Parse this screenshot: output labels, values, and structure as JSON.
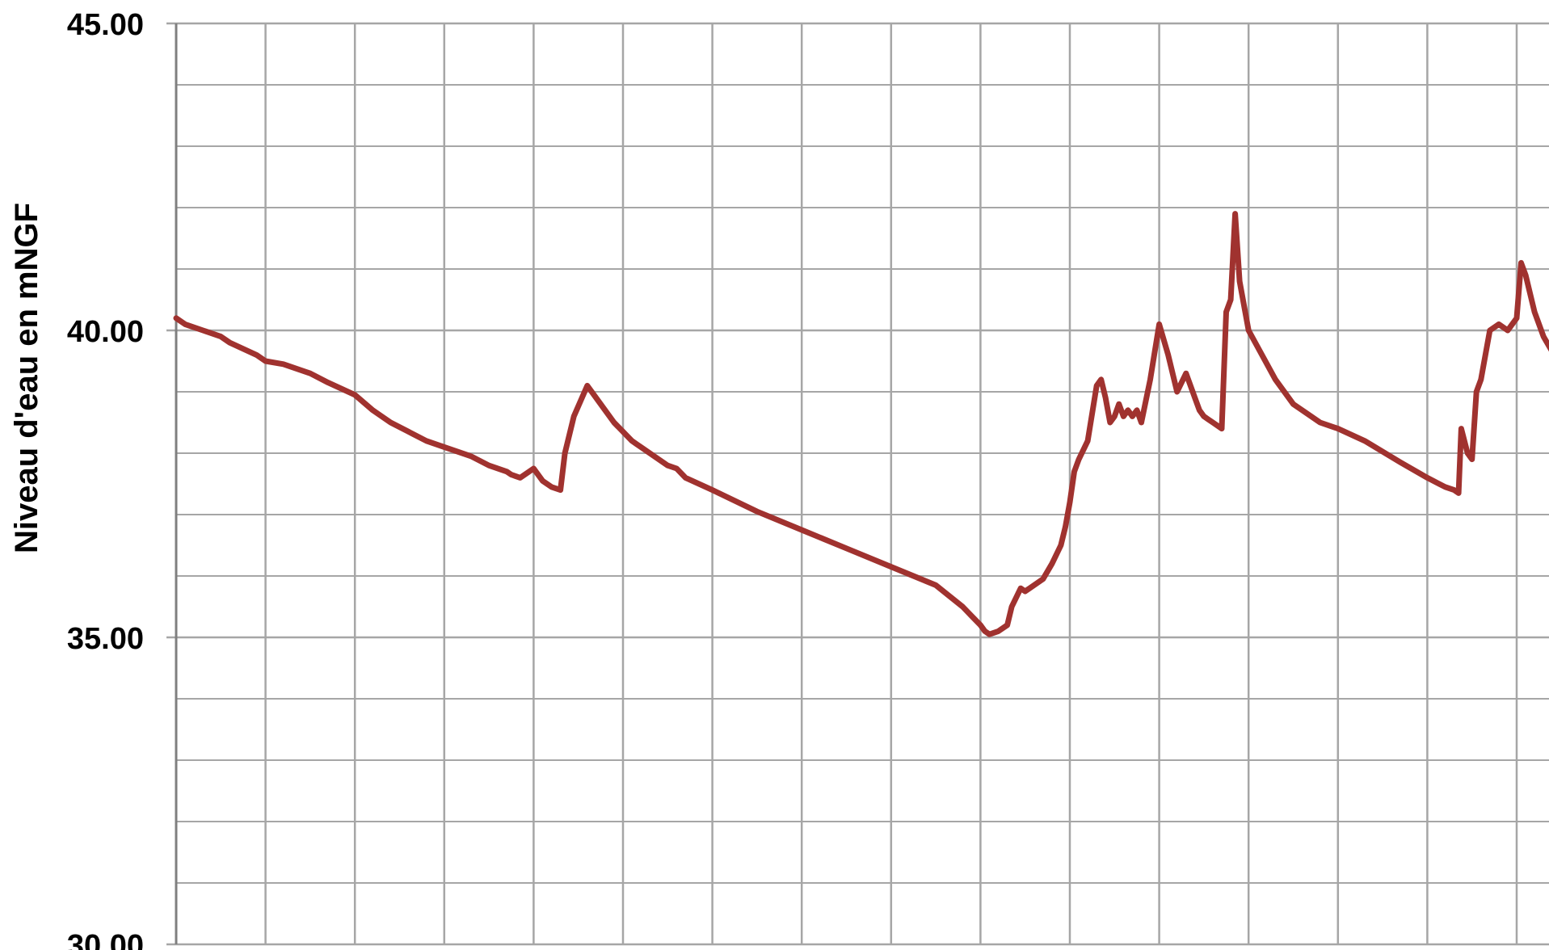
{
  "chart_data": {
    "type": "line",
    "title": "",
    "xlabel": "",
    "ylabel": "Niveau d'eau en mNGF",
    "ylim": [
      30,
      45
    ],
    "y_ticks": [
      {
        "value": 30,
        "label": "30.00"
      },
      {
        "value": 35,
        "label": "35.00"
      },
      {
        "value": 40,
        "label": "40.00"
      },
      {
        "value": 45,
        "label": "45.00"
      }
    ],
    "y_minor_gridlines": [
      31,
      32,
      33,
      34,
      36,
      37,
      38,
      39,
      41,
      42,
      43,
      44
    ],
    "x_gridline_count": 16,
    "xlim": [
      0,
      15.4
    ],
    "grid": true,
    "legend": "none",
    "colors": {
      "line": "#A0322F",
      "grid": "#A6A6A6",
      "axis": "#7F7F7F"
    },
    "series": [
      {
        "x": [
          0,
          0.1,
          0.3,
          0.5,
          0.6,
          0.9,
          1.0,
          1.2,
          1.5,
          1.7,
          2.0,
          2.2,
          2.4,
          2.6,
          2.8,
          3.0,
          3.3,
          3.5,
          3.7,
          3.75,
          3.85,
          4.0,
          4.1,
          4.2,
          4.3,
          4.35,
          4.45,
          4.6,
          4.7,
          4.9,
          5.1,
          5.15,
          5.2,
          5.5,
          5.6,
          5.7,
          6.0,
          6.5,
          7.0,
          7.5,
          8.0,
          8.5,
          8.8,
          8.9,
          9.0,
          9.05,
          9.1,
          9.2,
          9.3,
          9.35,
          9.45,
          9.5,
          9.55,
          9.7,
          9.8,
          9.9,
          9.95,
          10.0,
          10.05,
          10.1,
          10.2,
          10.3,
          10.35,
          10.4,
          10.45,
          10.5,
          10.55,
          10.6,
          10.65,
          10.7,
          10.75,
          10.8,
          10.9,
          11.0,
          11.1,
          11.2,
          11.3,
          11.4,
          11.45,
          11.5,
          11.55,
          11.6,
          11.7,
          11.75,
          11.8,
          11.85,
          11.9,
          12.0,
          12.3,
          12.5,
          12.8,
          13.0,
          13.3,
          13.7,
          14.0,
          14.2,
          14.3,
          14.35,
          14.38,
          14.45,
          14.5,
          14.55,
          14.6,
          14.65,
          14.7,
          14.8,
          14.9,
          15.0,
          15.05,
          15.1,
          15.15,
          15.2,
          15.3,
          15.4
        ],
        "values": [
          40.2,
          40.1,
          40.0,
          39.9,
          39.8,
          39.6,
          39.5,
          39.45,
          39.3,
          39.15,
          38.95,
          38.7,
          38.5,
          38.35,
          38.2,
          38.1,
          37.95,
          37.8,
          37.7,
          37.65,
          37.6,
          37.75,
          37.55,
          37.45,
          37.4,
          38.0,
          38.6,
          39.1,
          38.9,
          38.5,
          38.2,
          38.15,
          38.1,
          37.8,
          37.75,
          37.6,
          37.4,
          37.05,
          36.75,
          36.45,
          36.15,
          35.85,
          35.5,
          35.35,
          35.2,
          35.1,
          35.05,
          35.1,
          35.2,
          35.5,
          35.8,
          35.75,
          35.8,
          35.95,
          36.2,
          36.5,
          36.8,
          37.2,
          37.7,
          37.9,
          38.2,
          39.1,
          39.2,
          38.9,
          38.5,
          38.6,
          38.8,
          38.6,
          38.7,
          38.6,
          38.7,
          38.5,
          39.2,
          40.1,
          39.6,
          39.0,
          39.3,
          38.9,
          38.7,
          38.6,
          38.55,
          38.5,
          38.4,
          40.3,
          40.5,
          41.9,
          40.8,
          40.0,
          39.2,
          38.8,
          38.5,
          38.4,
          38.2,
          37.85,
          37.6,
          37.45,
          37.4,
          37.35,
          38.4,
          38.0,
          37.9,
          39.0,
          39.2,
          39.6,
          40.0,
          40.1,
          40.0,
          40.2,
          41.1,
          40.9,
          40.6,
          40.3,
          39.9,
          39.65
        ]
      }
    ]
  }
}
